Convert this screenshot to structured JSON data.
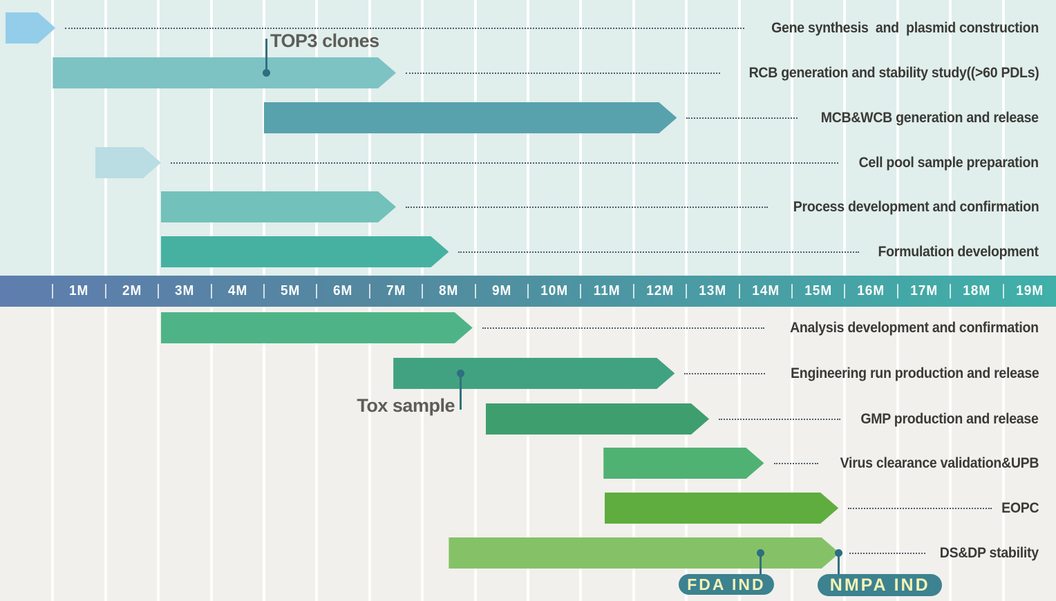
{
  "chart_data": {
    "type": "bar",
    "subtype": "gantt-timeline",
    "title": "",
    "axis": {
      "unit": "months",
      "tick_labels": [
        "1M",
        "2M",
        "3M",
        "4M",
        "5M",
        "6M",
        "7M",
        "8M",
        "9M",
        "10M",
        "11M",
        "12M",
        "13M",
        "14M",
        "15M",
        "16M",
        "17M",
        "18M",
        "19M"
      ],
      "xlim_months": [
        0,
        20
      ],
      "gradient_left_color": "#5f7daf",
      "gradient_right_color": "#40b0a9",
      "label_color": "#ffffff"
    },
    "layout_hints": {
      "top_section_bg": "#e0eeec",
      "bottom_section_bg": "#f1f0ec",
      "gridlines": "on",
      "labels_position": "right",
      "leader_style": "dotted"
    },
    "tasks": [
      {
        "label": "Gene synthesis  and  plasmid construction",
        "start_month": 0.1,
        "end_month": 1.05,
        "color": "#93cdea",
        "section": "top"
      },
      {
        "label": "RCB generation and stability study((>60 PDLs)",
        "start_month": 1.0,
        "end_month": 7.5,
        "color": "#7dc3c4",
        "section": "top"
      },
      {
        "label": "MCB&WCB generation and release",
        "start_month": 5.0,
        "end_month": 12.82,
        "color": "#58a2ad",
        "section": "top"
      },
      {
        "label": "Cell pool sample preparation",
        "start_month": 1.8,
        "end_month": 3.05,
        "color": "#b9dde3",
        "section": "top"
      },
      {
        "label": "Process development and confirmation",
        "start_month": 3.05,
        "end_month": 7.5,
        "color": "#72c1ba",
        "section": "top"
      },
      {
        "label": "Formulation development",
        "start_month": 3.05,
        "end_month": 8.5,
        "color": "#46b1a1",
        "section": "top"
      },
      {
        "label": "Analysis development and confirmation",
        "start_month": 3.05,
        "end_month": 8.95,
        "color": "#4eb487",
        "section": "bottom"
      },
      {
        "label": "Engineering run production and release",
        "start_month": 7.45,
        "end_month": 12.78,
        "color": "#41a282",
        "section": "bottom"
      },
      {
        "label": "GMP production and release",
        "start_month": 9.2,
        "end_month": 13.43,
        "color": "#3f9e6d",
        "section": "bottom"
      },
      {
        "label": "Virus clearance validation&UPB",
        "start_month": 11.43,
        "end_month": 14.47,
        "color": "#4fb273",
        "section": "bottom"
      },
      {
        "label": "EOPC",
        "start_month": 11.45,
        "end_month": 15.88,
        "color": "#5fad3f",
        "section": "bottom"
      },
      {
        "label": "DS&DP stability",
        "start_month": 8.5,
        "end_month": 15.9,
        "color": "#85c267",
        "section": "bottom"
      }
    ],
    "annotations": [
      {
        "label": "TOP3 clones",
        "type": "callout-above",
        "month": 5.04,
        "task": "RCB generation and stability study((>60 PDLs)"
      },
      {
        "label": "Tox sample",
        "type": "callout-below",
        "month": 8.73,
        "task": "Engineering run production and release"
      },
      {
        "label": "FDA IND",
        "type": "badge",
        "month": 14.41,
        "task": "DS&DP stability",
        "badge_bg": "#3c8290",
        "badge_text_color": "#f6f2b5"
      },
      {
        "label": "NMPA IND",
        "type": "badge",
        "month": 15.88,
        "task": "DS&DP stability",
        "badge_bg": "#3c8290",
        "badge_text_color": "#f6f2b5"
      }
    ]
  }
}
